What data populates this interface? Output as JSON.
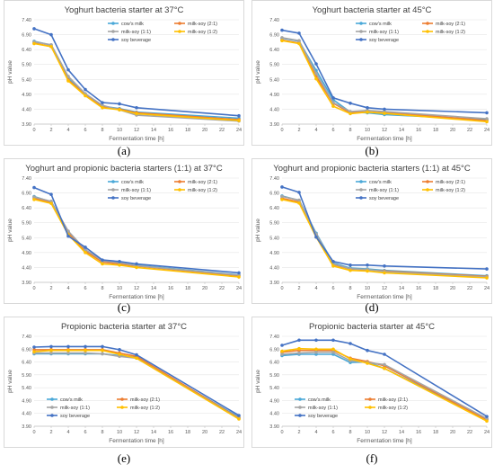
{
  "series_colors": [
    "#4aa8d8",
    "#ed7d31",
    "#a5a5a5",
    "#ffc000",
    "#4472c4",
    "#70ad47"
  ],
  "captions": [
    "(a)",
    "(b)",
    "(c)",
    "(d)",
    "(e)",
    "(f)"
  ],
  "chart_data": [
    {
      "type": "line",
      "title": "Yoghurt bacteria starter at 37°C",
      "xlabel": "Fermentation time [h]",
      "ylabel": "pH value",
      "x": [
        0,
        2,
        4,
        6,
        8,
        10,
        12,
        24
      ],
      "xticks": [
        "0",
        "2",
        "4",
        "6",
        "8",
        "10",
        "12",
        "14",
        "16",
        "18",
        "20",
        "22",
        "24"
      ],
      "yticks": [
        "3.90",
        "4.40",
        "4.90",
        "5.40",
        "5.90",
        "6.40",
        "6.90",
        "7.40"
      ],
      "ylim": [
        3.9,
        7.4
      ],
      "legend_position": "top-right",
      "series": [
        {
          "name": "cow's milk",
          "values": [
            6.68,
            6.55,
            5.45,
            4.9,
            4.5,
            4.42,
            4.3,
            4.1
          ]
        },
        {
          "name": "milk-soy (2:1)",
          "values": [
            6.62,
            6.5,
            5.38,
            4.88,
            4.48,
            4.4,
            4.28,
            4.05
          ]
        },
        {
          "name": "milk-soy (1:1)",
          "values": [
            6.66,
            6.56,
            5.5,
            4.92,
            4.53,
            4.38,
            4.2,
            4.0
          ]
        },
        {
          "name": "milk-soy (1:2)",
          "values": [
            6.6,
            6.5,
            5.35,
            4.85,
            4.45,
            4.38,
            4.25,
            4.02
          ]
        },
        {
          "name": "soy beverage",
          "values": [
            7.1,
            6.9,
            5.72,
            5.06,
            4.62,
            4.58,
            4.45,
            4.18
          ]
        }
      ]
    },
    {
      "type": "line",
      "title": "Yoghurt bacteria starter at 45°C",
      "xlabel": "Fermentation time [h]",
      "ylabel": "pH value",
      "x": [
        0,
        2,
        4,
        6,
        8,
        10,
        12,
        24
      ],
      "xticks": [
        "0",
        "2",
        "4",
        "6",
        "8",
        "10",
        "12",
        "14",
        "16",
        "18",
        "20",
        "22",
        "24"
      ],
      "yticks": [
        "3.90",
        "4.40",
        "4.90",
        "5.40",
        "5.90",
        "6.40",
        "6.90",
        "7.40"
      ],
      "ylim": [
        3.9,
        7.4
      ],
      "legend_position": "top-right",
      "series": [
        {
          "name": "cow's milk",
          "values": [
            6.78,
            6.68,
            5.7,
            4.72,
            4.3,
            4.28,
            4.22,
            4.05
          ]
        },
        {
          "name": "milk-soy (2:1)",
          "values": [
            6.72,
            6.62,
            5.5,
            4.6,
            4.28,
            4.35,
            4.3,
            4.02
          ]
        },
        {
          "name": "milk-soy (1:1)",
          "values": [
            6.8,
            6.7,
            5.6,
            4.62,
            4.32,
            4.36,
            4.32,
            4.08
          ]
        },
        {
          "name": "milk-soy (1:2)",
          "values": [
            6.7,
            6.6,
            5.42,
            4.5,
            4.25,
            4.3,
            4.26,
            3.98
          ]
        },
        {
          "name": "soy beverage",
          "values": [
            7.05,
            6.95,
            5.92,
            4.78,
            4.6,
            4.45,
            4.4,
            4.28
          ]
        }
      ]
    },
    {
      "type": "line",
      "title": "Yoghurt and propionic bacteria starters (1:1) at 37°C",
      "xlabel": "Fermentation time [h]",
      "ylabel": "pH value",
      "x": [
        0,
        2,
        4,
        6,
        8,
        10,
        12,
        24
      ],
      "xticks": [
        "0",
        "2",
        "4",
        "6",
        "8",
        "10",
        "12",
        "14",
        "16",
        "18",
        "20",
        "22",
        "24"
      ],
      "yticks": [
        "3.90",
        "4.40",
        "4.90",
        "5.40",
        "5.90",
        "6.40",
        "6.90",
        "7.40"
      ],
      "ylim": [
        3.9,
        7.4
      ],
      "legend_position": "top-right",
      "series": [
        {
          "name": "cow's milk",
          "values": [
            6.78,
            6.6,
            5.6,
            4.98,
            4.6,
            4.55,
            4.48,
            4.15
          ]
        },
        {
          "name": "milk-soy (2:1)",
          "values": [
            6.72,
            6.58,
            5.55,
            4.95,
            4.58,
            4.52,
            4.45,
            4.12
          ]
        },
        {
          "name": "milk-soy (1:1)",
          "values": [
            6.76,
            6.62,
            5.62,
            5.0,
            4.62,
            4.56,
            4.46,
            4.14
          ]
        },
        {
          "name": "milk-soy (1:2)",
          "values": [
            6.68,
            6.55,
            5.5,
            4.9,
            4.52,
            4.48,
            4.4,
            4.08
          ]
        },
        {
          "name": "soy beverage",
          "values": [
            7.08,
            6.85,
            5.45,
            5.08,
            4.65,
            4.6,
            4.52,
            4.22
          ]
        }
      ]
    },
    {
      "type": "line",
      "title": "Yoghurt and propionic bacteria starters (1:1) at 45°C",
      "xlabel": "Fermentation time [h]",
      "ylabel": "pH value",
      "x": [
        0,
        2,
        4,
        6,
        8,
        10,
        12,
        24
      ],
      "xticks": [
        "0",
        "2",
        "4",
        "6",
        "8",
        "10",
        "12",
        "14",
        "16",
        "18",
        "20",
        "22",
        "24"
      ],
      "yticks": [
        "3.90",
        "4.40",
        "4.90",
        "5.40",
        "5.90",
        "6.40",
        "6.90",
        "7.40"
      ],
      "ylim": [
        3.9,
        7.4
      ],
      "legend_position": "top-right",
      "series": [
        {
          "name": "cow's milk",
          "values": [
            6.8,
            6.65,
            5.55,
            4.55,
            4.38,
            4.35,
            4.3,
            4.12
          ]
        },
        {
          "name": "milk-soy (2:1)",
          "values": [
            6.72,
            6.6,
            5.5,
            4.5,
            4.35,
            4.32,
            4.28,
            4.1
          ]
        },
        {
          "name": "milk-soy (1:1)",
          "values": [
            6.78,
            6.66,
            5.52,
            4.52,
            4.36,
            4.33,
            4.26,
            4.08
          ]
        },
        {
          "name": "milk-soy (1:2)",
          "values": [
            6.68,
            6.56,
            5.42,
            4.45,
            4.3,
            4.28,
            4.22,
            4.05
          ]
        },
        {
          "name": "soy beverage",
          "values": [
            7.1,
            6.92,
            5.42,
            4.6,
            4.48,
            4.48,
            4.45,
            4.35
          ]
        }
      ]
    },
    {
      "type": "line",
      "title": "Propionic bacteria starter at 37°C",
      "xlabel": "Fermentation time [h]",
      "ylabel": "pH value",
      "x": [
        0,
        2,
        4,
        6,
        8,
        10,
        12,
        24
      ],
      "xticks": [
        "0",
        "2",
        "4",
        "6",
        "8",
        "10",
        "12",
        "14",
        "16",
        "18",
        "20",
        "22",
        "24"
      ],
      "yticks": [
        "3.90",
        "4.40",
        "4.90",
        "5.40",
        "5.90",
        "6.40",
        "6.90",
        "7.40"
      ],
      "ylim": [
        3.9,
        7.4
      ],
      "legend_position": "bottom-left",
      "series": [
        {
          "name": "cow's milk",
          "values": [
            6.72,
            6.72,
            6.72,
            6.72,
            6.72,
            6.65,
            6.58,
            4.25
          ]
        },
        {
          "name": "milk-soy (2:1)",
          "values": [
            6.88,
            6.88,
            6.88,
            6.88,
            6.88,
            6.75,
            6.62,
            4.22
          ]
        },
        {
          "name": "milk-soy (1:1)",
          "values": [
            6.75,
            6.75,
            6.75,
            6.75,
            6.72,
            6.62,
            6.55,
            4.2
          ]
        },
        {
          "name": "milk-soy (1:2)",
          "values": [
            6.8,
            6.85,
            6.85,
            6.85,
            6.85,
            6.7,
            6.55,
            4.18
          ]
        },
        {
          "name": "soy beverage",
          "values": [
            6.98,
            7.0,
            7.0,
            7.0,
            7.0,
            6.88,
            6.68,
            4.32
          ]
        }
      ]
    },
    {
      "type": "line",
      "title": "Propionic bacteria starter at 45°C",
      "xlabel": "Fermentation time [h]",
      "ylabel": "pH value",
      "x": [
        0,
        2,
        4,
        6,
        8,
        10,
        12,
        24
      ],
      "xticks": [
        "0",
        "2",
        "4",
        "6",
        "8",
        "10",
        "12",
        "14",
        "16",
        "18",
        "20",
        "22",
        "24"
      ],
      "yticks": [
        "3.90",
        "4.40",
        "4.90",
        "5.40",
        "5.90",
        "6.40",
        "6.90",
        "7.40"
      ],
      "ylim": [
        3.9,
        7.4
      ],
      "legend_position": "bottom-left",
      "series": [
        {
          "name": "cow's milk",
          "values": [
            6.65,
            6.7,
            6.7,
            6.7,
            6.38,
            6.4,
            6.15,
            4.18
          ]
        },
        {
          "name": "milk-soy (2:1)",
          "values": [
            6.78,
            6.85,
            6.85,
            6.85,
            6.55,
            6.42,
            6.25,
            4.15
          ]
        },
        {
          "name": "milk-soy (1:1)",
          "values": [
            6.7,
            6.75,
            6.78,
            6.78,
            6.45,
            6.38,
            6.3,
            4.2
          ]
        },
        {
          "name": "milk-soy (1:2)",
          "values": [
            6.82,
            6.92,
            6.9,
            6.9,
            6.52,
            6.35,
            6.15,
            4.1
          ]
        },
        {
          "name": "soy beverage",
          "values": [
            7.05,
            7.25,
            7.25,
            7.25,
            7.12,
            6.85,
            6.7,
            4.28
          ]
        }
      ]
    }
  ]
}
